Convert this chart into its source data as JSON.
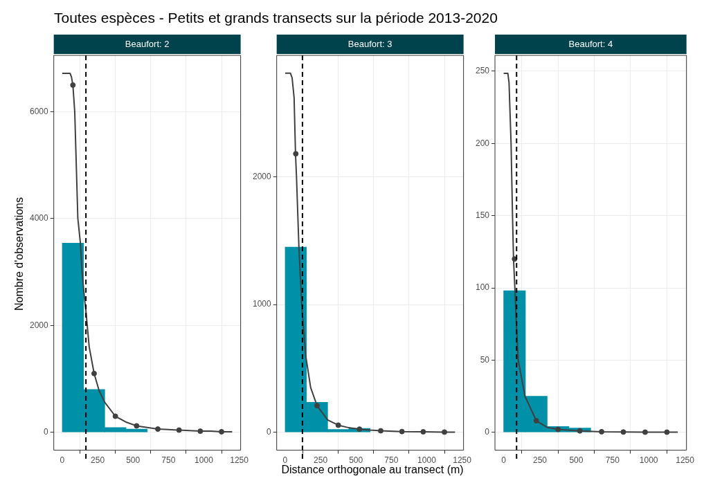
{
  "chart_data": [
    {
      "type": "histogram",
      "title": "Toutes espèces - Petits et grands transects sur la période 2013-2020",
      "subtitle": "Beaufort: 2",
      "ylabel": "Nombre d'observations",
      "xlim": [
        -60,
        1260
      ],
      "xticks": [
        0,
        250,
        500,
        750,
        1000,
        1250
      ],
      "ylim": [
        -336,
        7056
      ],
      "yticks": [
        0,
        2000,
        4000,
        6000
      ],
      "grid": true,
      "bins": [
        0,
        150,
        300,
        450,
        600
      ],
      "values": [
        3540,
        800,
        90,
        60
      ],
      "color": "#0090a8",
      "series": [
        {
          "type": "line",
          "color": "#404040",
          "x": [
            0,
            55,
            65,
            75,
            88,
            99,
            110,
            128,
            140,
            158,
            167,
            190,
            225,
            260,
            300,
            375,
            450,
            525,
            600,
            675,
            750,
            825,
            900,
            975,
            1050,
            1125,
            1200
          ],
          "values": [
            6720,
            6720,
            6650,
            6500,
            6000,
            5000,
            4000,
            3540,
            3000,
            2480,
            2270,
            1600,
            1100,
            780,
            560,
            300,
            190,
            120,
            90,
            60,
            50,
            40,
            30,
            20,
            20,
            10,
            10
          ]
        },
        {
          "type": "scatter",
          "color": "#404040",
          "marker": "circle",
          "x": [
            75,
            225,
            375,
            525,
            675,
            825,
            975,
            1125
          ],
          "values": [
            6500,
            1100,
            300,
            120,
            60,
            40,
            20,
            10
          ]
        }
      ],
      "ref_lines": [
        {
          "axis": "x",
          "value": 167,
          "color": "#000000",
          "line_style": "dashed"
        }
      ]
    },
    {
      "type": "histogram",
      "subtitle": "Beaufort: 3",
      "xlabel": "Distance orthogonale au transect (m)",
      "xlim": [
        -60,
        1260
      ],
      "xticks": [
        0,
        250,
        500,
        750,
        1000,
        1250
      ],
      "ylim": [
        -140,
        2950
      ],
      "yticks": [
        0,
        1000,
        2000
      ],
      "grid": true,
      "bins": [
        0,
        150,
        300,
        450,
        600
      ],
      "values": [
        1450,
        235,
        23,
        31
      ],
      "color": "#0090a8",
      "series": [
        {
          "type": "line",
          "color": "#404040",
          "x": [
            0,
            37,
            49,
            63,
            73,
            80,
            97,
            117,
            122,
            145,
            180,
            225,
            300,
            375,
            450,
            525,
            600,
            675,
            825,
            975,
            1125,
            1200
          ],
          "values": [
            2810,
            2810,
            2774,
            2619,
            2180,
            2000,
            1450,
            1000,
            920,
            600,
            350,
            209,
            97,
            56,
            36,
            25,
            17,
            12,
            6,
            4,
            2,
            2
          ]
        },
        {
          "type": "scatter",
          "color": "#404040",
          "marker": "circle",
          "x": [
            75,
            225,
            375,
            525,
            675,
            825,
            975,
            1125
          ],
          "values": [
            2180,
            209,
            56,
            25,
            12,
            6,
            4,
            2
          ]
        }
      ],
      "ref_lines": [
        {
          "axis": "x",
          "value": 122,
          "color": "#000000",
          "line_style": "dashed"
        }
      ]
    },
    {
      "type": "histogram",
      "subtitle": "Beaufort: 4",
      "xlim": [
        -60,
        1260
      ],
      "xticks": [
        0,
        250,
        500,
        750,
        1000,
        1250
      ],
      "ylim": [
        -12.4,
        261
      ],
      "yticks": [
        0,
        50,
        100,
        150,
        200,
        250
      ],
      "grid": true,
      "bins": [
        0,
        150,
        300,
        450,
        600
      ],
      "values": [
        98,
        25,
        4,
        3
      ],
      "color": "#0090a8",
      "series": [
        {
          "type": "line",
          "color": "#404040",
          "x": [
            0,
            29,
            37,
            51,
            61,
            68,
            78,
            89,
            100,
            147,
            225,
            300,
            375,
            525,
            675,
            825,
            975,
            1125,
            1200
          ],
          "values": [
            248.5,
            248.5,
            242,
            200,
            150,
            120,
            98,
            72,
            50,
            25,
            8,
            3.4,
            2,
            1,
            0.4,
            0.2,
            0.1,
            0.1,
            0.1
          ]
        },
        {
          "type": "scatter",
          "color": "#404040",
          "marker": "circle",
          "x": [
            75,
            225,
            375,
            525,
            675,
            825,
            975,
            1125
          ],
          "values": [
            120,
            8,
            2,
            1,
            0.4,
            0.2,
            0.1,
            0.1
          ]
        }
      ],
      "ref_lines": [
        {
          "axis": "x",
          "value": 89,
          "color": "#000000",
          "line_style": "dashed"
        }
      ]
    }
  ]
}
